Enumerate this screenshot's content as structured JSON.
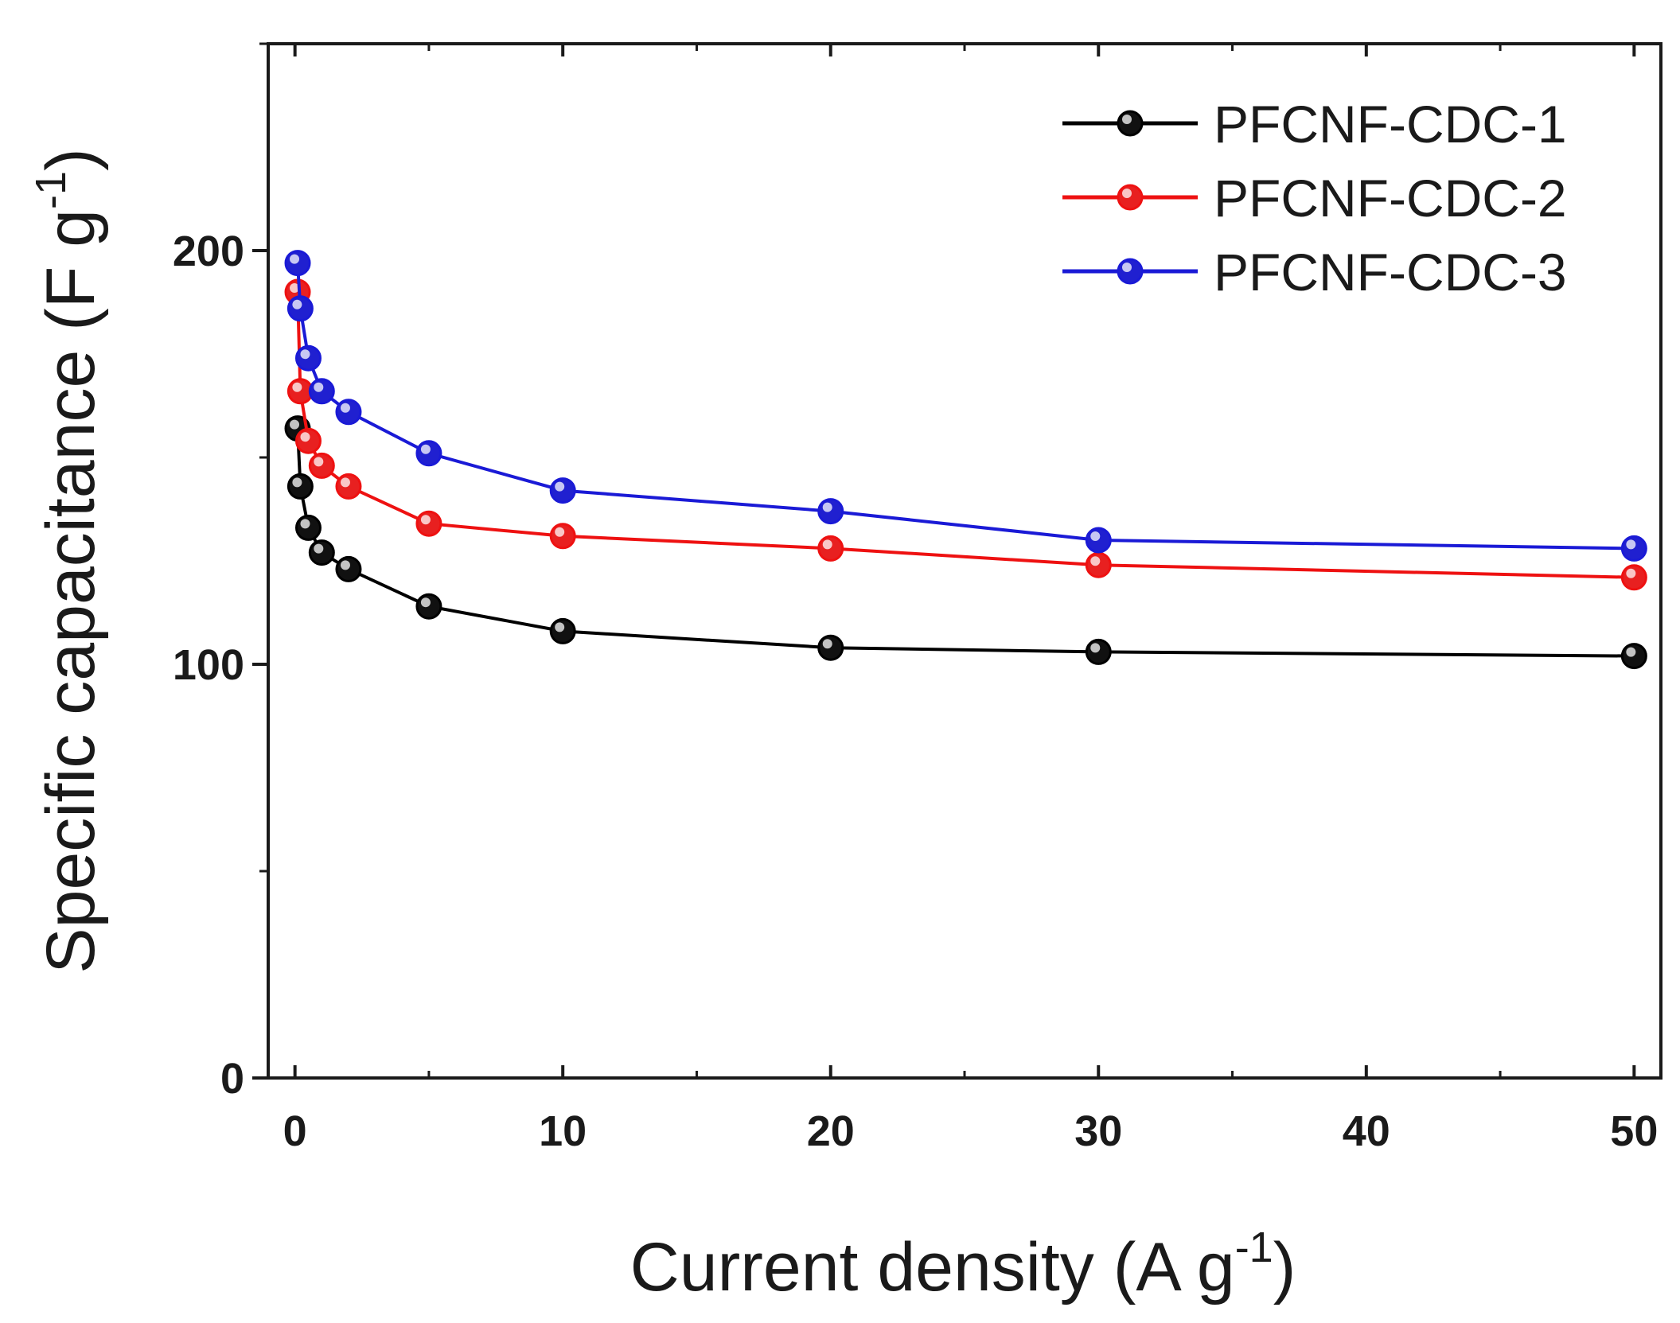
{
  "chart_data": {
    "type": "line",
    "title": "",
    "xlabel": "Current density (A g",
    "xlabel_sup": "-1",
    "xlabel_close": ")",
    "ylabel": "Specific capacitance (F g",
    "ylabel_sup": "-1",
    "ylabel_close": ")",
    "xlim": [
      -1,
      51
    ],
    "ylim": [
      0,
      250
    ],
    "xticks": [
      0,
      10,
      20,
      30,
      40,
      50
    ],
    "xtick_labels": [
      "0",
      "10",
      "20",
      "30",
      "40",
      "50"
    ],
    "yticks": [
      0,
      100,
      200
    ],
    "ytick_labels": [
      "0",
      "100",
      "200"
    ],
    "grid": false,
    "legend_position": "top-right",
    "x": [
      0.1,
      0.2,
      0.5,
      1,
      2,
      5,
      10,
      20,
      30,
      50
    ],
    "series": [
      {
        "name": "PFCNF-CDC-1",
        "color": "#000000",
        "marker_fill": "#111111",
        "values": [
          157,
          143,
          133,
          127,
          123,
          114,
          108,
          104,
          103,
          102
        ]
      },
      {
        "name": "PFCNF-CDC-2",
        "color": "#ee1111",
        "marker_fill": "#e82020",
        "values": [
          190,
          166,
          154,
          148,
          143,
          134,
          131,
          128,
          124,
          121
        ]
      },
      {
        "name": "PFCNF-CDC-3",
        "color": "#1a1ad6",
        "marker_fill": "#2020d0",
        "values": [
          197,
          186,
          174,
          166,
          161,
          151,
          142,
          137,
          130,
          128
        ]
      }
    ]
  }
}
